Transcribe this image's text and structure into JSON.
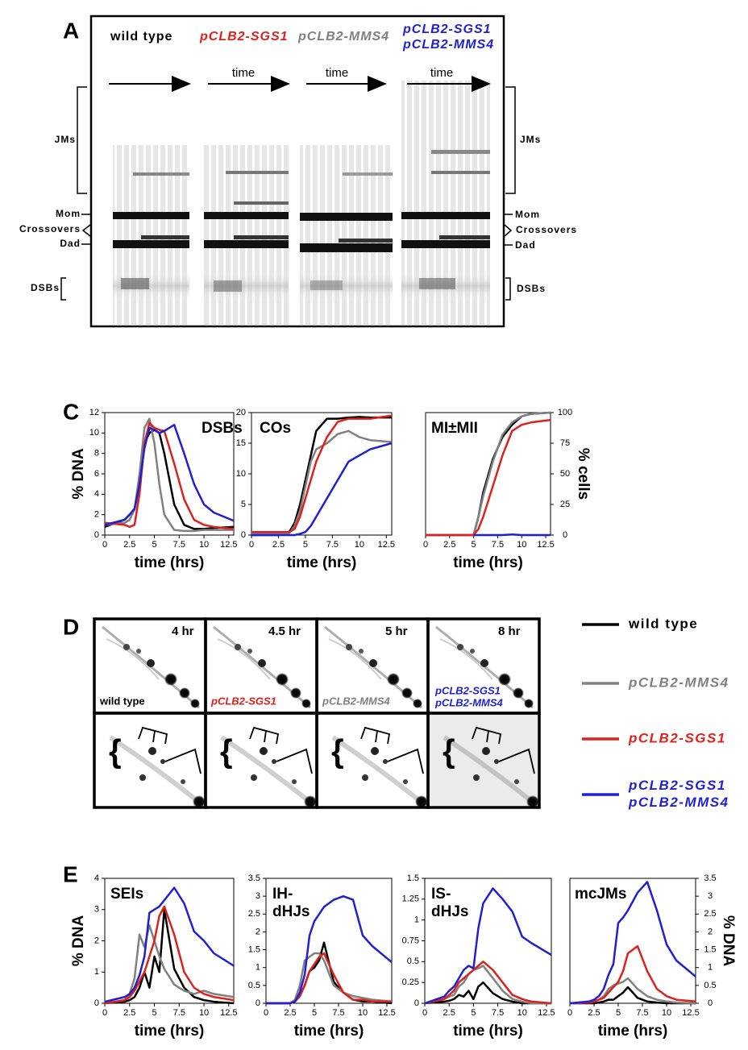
{
  "panel_labels": [
    "A",
    "C",
    "D",
    "E"
  ],
  "gel_a": {
    "strains": [
      [
        "wild type"
      ],
      [
        "pCLB2-SGS1"
      ],
      [
        "pCLB2-MMS4"
      ],
      [
        "pCLB2-SGS1",
        "pCLB2-MMS4"
      ]
    ],
    "time_labels": [
      "time",
      "time",
      "time"
    ],
    "left_labels": [
      "JMs",
      "Mom",
      "Crossovers",
      "Dad",
      "DSBs"
    ],
    "right_labels": [
      "JMs",
      "Mom",
      "Crossovers",
      "Dad",
      "DSBs"
    ]
  },
  "gel_d": {
    "timepoints": [
      "4 hr",
      "4.5 hr",
      "5 hr",
      "8 hr"
    ],
    "strains": [
      [
        "wild type"
      ],
      [
        "pCLB2-SGS1"
      ],
      [
        "pCLB2-MMS4"
      ],
      [
        "pCLB2-SGS1",
        "pCLB2-MMS4"
      ]
    ]
  },
  "legend": [
    {
      "name": [
        "wild type"
      ],
      "color": "#000000"
    },
    {
      "name": [
        "pCLB2-MMS4"
      ],
      "color": "#808080"
    },
    {
      "name": [
        "pCLB2-SGS1"
      ],
      "color": "#e0201b"
    },
    {
      "name": [
        "pCLB2-SGS1",
        "pCLB2-MMS4"
      ],
      "color": "#1f1fd6"
    }
  ],
  "chart_data": [
    {
      "type": "line",
      "annotation": [
        "DSBs"
      ],
      "xlabel": "time (hrs)",
      "ylabel": "% DNA",
      "x": [
        0,
        2,
        2.5,
        3,
        3.5,
        4,
        4.5,
        5,
        5.5,
        6,
        7,
        8,
        9,
        10,
        11,
        13
      ],
      "xlim": [
        0,
        13
      ],
      "xticks": [
        0,
        2.5,
        5,
        7.5,
        10,
        12.5
      ],
      "ylim": [
        0,
        12
      ],
      "yticks": [
        0,
        2,
        4,
        6,
        8,
        10,
        12
      ],
      "series": [
        {
          "color": "#000000",
          "values": [
            0.8,
            1.5,
            2,
            2.5,
            5,
            9,
            10,
            10.3,
            10,
            8,
            3,
            1,
            0.6,
            0.6,
            0.7,
            0.8
          ]
        },
        {
          "color": "#808080",
          "values": [
            1,
            1.2,
            1.5,
            2.5,
            6,
            10.5,
            11.4,
            9,
            5,
            2,
            0.5,
            0.4,
            0.4,
            0.5,
            0.5,
            0.5
          ]
        },
        {
          "color": "#e0201b",
          "values": [
            1.2,
            1,
            0.8,
            1,
            4,
            9,
            11,
            10.5,
            10.3,
            10.2,
            7,
            3.5,
            1.5,
            1,
            0.8,
            0.6
          ]
        },
        {
          "color": "#1f1fd6",
          "values": [
            1,
            1.5,
            2,
            2.6,
            5,
            8.5,
            10.5,
            10.3,
            10,
            10.2,
            10.8,
            8,
            5,
            3,
            2.2,
            1.4
          ]
        }
      ]
    },
    {
      "type": "line",
      "annotation": [
        "COs"
      ],
      "xlabel": "time (hrs)",
      "x": [
        0,
        2,
        2.5,
        3,
        3.5,
        4,
        4.5,
        5,
        5.5,
        6,
        7,
        8,
        9,
        10,
        11,
        13
      ],
      "xlim": [
        0,
        13
      ],
      "xticks": [
        0,
        2.5,
        5,
        7.5,
        10,
        12.5
      ],
      "ylim": [
        0,
        20
      ],
      "yticks": [
        0,
        5,
        10,
        15,
        20
      ],
      "series": [
        {
          "color": "#000000",
          "values": [
            0,
            0,
            0,
            0.2,
            0.5,
            2,
            5,
            9,
            13,
            17,
            19,
            19,
            19.2,
            19.3,
            19.2,
            19.2
          ]
        },
        {
          "color": "#808080",
          "values": [
            0.3,
            0.3,
            0.3,
            0.3,
            0.3,
            1.5,
            4,
            8,
            12,
            14,
            15,
            16.5,
            17,
            16,
            15.5,
            15.2
          ]
        },
        {
          "color": "#e0201b",
          "values": [
            0.5,
            0.5,
            0.5,
            0.5,
            0.5,
            1,
            3,
            6,
            9,
            12,
            16,
            18.5,
            19,
            19,
            19,
            19.5
          ]
        },
        {
          "color": "#1f1fd6",
          "values": [
            0,
            0,
            0,
            0,
            0,
            0,
            0.2,
            0.5,
            1.5,
            3,
            6,
            9,
            12,
            13,
            14,
            15
          ]
        }
      ]
    },
    {
      "type": "line",
      "annotation": [
        "MI±MII"
      ],
      "xlabel": "time (hrs)",
      "y2label": "% cells",
      "x": [
        0,
        2,
        2.5,
        3,
        3.5,
        4,
        4.5,
        5,
        5.5,
        6,
        7,
        8,
        9,
        10,
        11,
        13
      ],
      "xlim": [
        0,
        13
      ],
      "xticks": [
        0,
        2.5,
        5,
        7.5,
        10,
        12.5
      ],
      "y2lim": [
        0,
        100
      ],
      "y2ticks": [
        0,
        25,
        50,
        75,
        100
      ],
      "series": [
        {
          "color": "#000000",
          "axis": "y2",
          "values": [
            0,
            0,
            0,
            0,
            0,
            0,
            0,
            0,
            15,
            35,
            62,
            80,
            90,
            97,
            99,
            100
          ]
        },
        {
          "color": "#808080",
          "axis": "y2",
          "values": [
            0,
            0,
            0,
            0,
            0,
            0,
            0,
            0,
            15,
            32,
            60,
            82,
            92,
            97,
            99,
            100
          ]
        },
        {
          "color": "#e0201b",
          "axis": "y2",
          "values": [
            0,
            0,
            0,
            0,
            0,
            0,
            0,
            0,
            5,
            15,
            40,
            65,
            85,
            90,
            92,
            94
          ]
        },
        {
          "color": "#1f1fd6",
          "axis": "y2",
          "values": [
            null,
            null,
            null,
            null,
            null,
            null,
            null,
            0,
            0,
            0,
            0,
            0,
            0.5,
            0,
            0,
            0
          ]
        }
      ]
    },
    {
      "type": "line",
      "annotation": [
        "SEIs"
      ],
      "xlabel": "time (hrs)",
      "ylabel": "% DNA",
      "x": [
        0,
        2,
        2.5,
        3,
        3.5,
        4,
        4.5,
        5,
        5.5,
        6,
        7,
        8,
        9,
        10,
        11,
        13
      ],
      "xlim": [
        0,
        13
      ],
      "xticks": [
        0,
        2.5,
        5,
        7.5,
        10,
        12.5
      ],
      "ylim": [
        0,
        4
      ],
      "yticks": [
        0,
        1,
        2,
        3,
        4
      ],
      "series": [
        {
          "color": "#000000",
          "values": [
            0,
            0.05,
            0.1,
            0.2,
            0.5,
            1,
            0.5,
            1.5,
            1,
            3,
            1.1,
            0.5,
            0.2,
            0.1,
            0.05,
            0
          ]
        },
        {
          "color": "#808080",
          "values": [
            0,
            0.1,
            0.3,
            0.8,
            2.2,
            1.8,
            2.5,
            2,
            1.5,
            1.1,
            0.6,
            0.4,
            0.3,
            0.4,
            0.3,
            0.2
          ]
        },
        {
          "color": "#e0201b",
          "values": [
            0,
            0.1,
            0.2,
            0.4,
            0.7,
            1,
            1.5,
            2,
            2.8,
            3.1,
            2.2,
            1,
            0.5,
            0.3,
            0.2,
            0.1
          ]
        },
        {
          "color": "#1f1fd6",
          "values": [
            0.05,
            0.2,
            0.3,
            0.5,
            0.9,
            1.5,
            2.9,
            3,
            3.1,
            3.3,
            3.7,
            3.2,
            2.3,
            2,
            1.6,
            1.2
          ]
        }
      ]
    },
    {
      "type": "line",
      "annotation": [
        "IH-",
        "dHJs"
      ],
      "xlabel": "time (hrs)",
      "x": [
        0,
        2,
        2.5,
        3,
        3.5,
        4,
        4.5,
        5,
        5.5,
        6,
        7,
        8,
        9,
        10,
        11,
        13
      ],
      "xlim": [
        0,
        13
      ],
      "xticks": [
        0,
        2.5,
        5,
        7.5,
        10,
        12.5
      ],
      "ylim": [
        0,
        3.5
      ],
      "yticks": [
        0,
        0.5,
        1,
        1.5,
        2,
        2.5,
        3,
        3.5
      ],
      "series": [
        {
          "color": "#000000",
          "values": [
            0,
            0,
            0,
            0.05,
            0.2,
            0.5,
            0.9,
            1,
            1.2,
            1.7,
            0.6,
            0.3,
            0.1,
            0.05,
            0.05,
            0
          ]
        },
        {
          "color": "#808080",
          "values": [
            0,
            0,
            0,
            0.1,
            0.5,
            1.2,
            1.3,
            1.4,
            1.4,
            1.2,
            0.5,
            0.3,
            0.2,
            0.15,
            0.1,
            0.05
          ]
        },
        {
          "color": "#e0201b",
          "values": [
            0,
            0,
            0,
            0.05,
            0.2,
            0.5,
            0.9,
            1.1,
            1.3,
            1.4,
            0.8,
            0.3,
            0.1,
            0.1,
            0.05,
            0.05
          ]
        },
        {
          "color": "#1f1fd6",
          "values": [
            0,
            0,
            0,
            0.05,
            0.3,
            0.8,
            1.9,
            2.3,
            2.5,
            2.7,
            2.9,
            3,
            2.9,
            1.9,
            1.6,
            1.15
          ]
        }
      ]
    },
    {
      "type": "line",
      "annotation": [
        "IS-",
        "dHJs"
      ],
      "xlabel": "time (hrs)",
      "x": [
        0,
        2,
        2.5,
        3,
        3.5,
        4,
        4.5,
        5,
        5.5,
        6,
        7,
        8,
        9,
        10,
        11,
        13
      ],
      "xlim": [
        0,
        13
      ],
      "xticks": [
        0,
        2.5,
        5,
        7.5,
        10,
        12.5
      ],
      "ylim": [
        0,
        1.5
      ],
      "yticks": [
        0,
        0.25,
        0.5,
        0.75,
        1,
        1.25,
        1.5
      ],
      "series": [
        {
          "color": "#000000",
          "values": [
            0,
            0.02,
            0.03,
            0.05,
            0.1,
            0.08,
            0.15,
            0.05,
            0.2,
            0.25,
            0.12,
            0.05,
            0.02,
            0,
            0,
            0
          ]
        },
        {
          "color": "#808080",
          "values": [
            0,
            0.05,
            0.08,
            0.1,
            0.2,
            0.25,
            0.35,
            0.4,
            0.42,
            0.45,
            0.3,
            0.15,
            0.05,
            0.02,
            0,
            0
          ]
        },
        {
          "color": "#e0201b",
          "values": [
            0,
            0.05,
            0.1,
            0.15,
            0.25,
            0.3,
            0.35,
            0.4,
            0.45,
            0.5,
            0.4,
            0.25,
            0.1,
            0.05,
            0.02,
            0
          ]
        },
        {
          "color": "#1f1fd6",
          "values": [
            0,
            0.08,
            0.15,
            0.2,
            0.3,
            0.4,
            0.45,
            0.42,
            0.9,
            1.2,
            1.38,
            1.25,
            1.1,
            0.8,
            0.72,
            0.58
          ]
        }
      ]
    },
    {
      "type": "line",
      "annotation": [
        "mcJMs"
      ],
      "xlabel": "time (hrs)",
      "y2label": "% DNA",
      "x": [
        0,
        2,
        2.5,
        3,
        3.5,
        4,
        4.5,
        5,
        5.5,
        6,
        7,
        8,
        9,
        10,
        11,
        13
      ],
      "xlim": [
        0,
        13
      ],
      "xticks": [
        0,
        2.5,
        5,
        7.5,
        10,
        12.5
      ],
      "y2lim": [
        0,
        3.5
      ],
      "y2ticks": [
        0,
        0.5,
        1,
        1.5,
        2,
        2.5,
        3,
        3.5
      ],
      "series": [
        {
          "color": "#000000",
          "axis": "y2",
          "values": [
            0,
            0,
            0,
            0.02,
            0.05,
            0.1,
            0.1,
            0.2,
            0.3,
            0.45,
            0.15,
            0.05,
            0.02,
            0,
            0,
            0
          ]
        },
        {
          "color": "#808080",
          "axis": "y2",
          "values": [
            0,
            0.02,
            0.05,
            0.1,
            0.2,
            0.4,
            0.5,
            0.55,
            0.6,
            0.7,
            0.4,
            0.2,
            0.1,
            0.05,
            0.02,
            0
          ]
        },
        {
          "color": "#e0201b",
          "axis": "y2",
          "values": [
            0,
            0.02,
            0.05,
            0.1,
            0.15,
            0.3,
            0.45,
            0.6,
            0.9,
            1.4,
            1.6,
            0.9,
            0.4,
            0.2,
            0.1,
            0.05
          ]
        },
        {
          "color": "#1f1fd6",
          "axis": "y2",
          "values": [
            0,
            0.05,
            0.1,
            0.2,
            0.4,
            0.8,
            1.1,
            2.25,
            2.4,
            2.6,
            3.1,
            3.4,
            2.6,
            1.65,
            1.2,
            0.75
          ]
        }
      ]
    }
  ]
}
